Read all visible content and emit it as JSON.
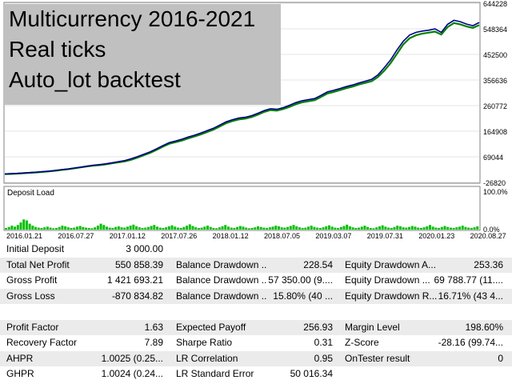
{
  "overlay": {
    "line1": "Multicurrency 2016-2021",
    "line2": "Real ticks",
    "line3": "Auto_lot backtest"
  },
  "chart_data": [
    {
      "type": "line",
      "title": "",
      "y_ticks": [
        "644228",
        "548364",
        "452500",
        "356636",
        "260772",
        "164908",
        "69044",
        "-26820"
      ],
      "ylim": [
        -26820,
        644228
      ],
      "series": [
        {
          "color": "#00008b",
          "x": [
            0,
            8,
            16,
            24,
            32,
            40,
            48,
            56,
            64,
            72,
            80,
            88,
            96,
            104,
            112,
            120,
            128,
            136,
            144,
            152,
            160,
            168,
            176,
            184,
            192,
            200,
            208,
            216,
            224,
            232,
            240,
            248,
            256,
            264,
            272,
            280,
            288,
            296,
            304,
            312,
            320,
            328,
            336,
            344,
            352,
            360,
            368,
            376,
            384,
            392,
            400,
            408,
            416,
            424,
            432,
            440,
            448,
            456,
            464,
            472,
            480,
            488,
            496,
            504,
            512,
            520,
            528,
            536,
            544,
            552,
            560,
            568,
            576,
            584,
            592,
            600
          ],
          "values": [
            5000,
            6000,
            7000,
            8500,
            10000,
            11500,
            13500,
            15500,
            18000,
            21000,
            23500,
            27000,
            30500,
            34000,
            37500,
            40000,
            43000,
            47000,
            51000,
            55000,
            62000,
            70000,
            79000,
            88000,
            99000,
            111000,
            122000,
            128000,
            135000,
            143000,
            150000,
            158000,
            167000,
            176000,
            188000,
            200000,
            208000,
            214000,
            217000,
            223000,
            232000,
            242000,
            249000,
            247000,
            253000,
            262000,
            272000,
            279000,
            283000,
            287000,
            299000,
            312000,
            318000,
            325000,
            332000,
            338000,
            346000,
            352000,
            359000,
            376000,
            403000,
            432000,
            469000,
            502000,
            525000,
            535000,
            540000,
            543000,
            548000,
            535000,
            565000,
            580000,
            575000,
            566000,
            560000,
            572000
          ]
        },
        {
          "color": "#008000",
          "x": [
            0,
            8,
            16,
            24,
            32,
            40,
            48,
            56,
            64,
            72,
            80,
            88,
            96,
            104,
            112,
            120,
            128,
            136,
            144,
            152,
            160,
            168,
            176,
            184,
            192,
            200,
            208,
            216,
            224,
            232,
            240,
            248,
            256,
            264,
            272,
            280,
            288,
            296,
            304,
            312,
            320,
            328,
            336,
            344,
            352,
            360,
            368,
            376,
            384,
            392,
            400,
            408,
            416,
            424,
            432,
            440,
            448,
            456,
            464,
            472,
            480,
            488,
            496,
            504,
            512,
            520,
            528,
            536,
            544,
            552,
            560,
            568,
            576,
            584,
            592,
            600
          ],
          "values": [
            4000,
            5000,
            6000,
            7500,
            9000,
            10500,
            12500,
            14500,
            17000,
            20000,
            22500,
            26000,
            29500,
            33000,
            36000,
            38000,
            41000,
            45000,
            48500,
            52000,
            58000,
            66000,
            75000,
            84000,
            95000,
            107000,
            118000,
            124000,
            130000,
            138000,
            145000,
            153000,
            162000,
            171000,
            183000,
            195000,
            203000,
            209000,
            212000,
            218000,
            227000,
            237000,
            244000,
            242000,
            248000,
            256000,
            266000,
            273000,
            277000,
            281000,
            293000,
            306000,
            312000,
            319000,
            326000,
            332000,
            340000,
            346000,
            352000,
            368000,
            392000,
            420000,
            455000,
            490000,
            513000,
            524000,
            530000,
            534000,
            538000,
            527000,
            555000,
            570000,
            565000,
            557000,
            552000,
            562000
          ]
        }
      ]
    },
    {
      "type": "bar",
      "title": "Deposit Load",
      "y_ticks": [
        "100.0%",
        "0.0%"
      ],
      "ylim": [
        0,
        100
      ],
      "color": "#00c000",
      "values": [
        5,
        8,
        12,
        9,
        14,
        22,
        31,
        28,
        18,
        12,
        8,
        6,
        5,
        7,
        9,
        6,
        4,
        5,
        8,
        12,
        10,
        7,
        5,
        6,
        9,
        11,
        8,
        6,
        5,
        4,
        7,
        12,
        18,
        14,
        9,
        6,
        5,
        8,
        10,
        7,
        6,
        9,
        12,
        15,
        10,
        7,
        5,
        6,
        8,
        11,
        14,
        9,
        6,
        5,
        7,
        10,
        13,
        9,
        6,
        5,
        8,
        12,
        16,
        11,
        7,
        5,
        6,
        9,
        12,
        8,
        5,
        4,
        7,
        10,
        14,
        9,
        6,
        5,
        8,
        11,
        9,
        6,
        4,
        5,
        7,
        10,
        8,
        6,
        5,
        7,
        9,
        12,
        10,
        7,
        6,
        8,
        11,
        14,
        10,
        7,
        5,
        6,
        9,
        12,
        8,
        6,
        5,
        7,
        10,
        13,
        9,
        6,
        5,
        8,
        11,
        15,
        10,
        7,
        5,
        6,
        9,
        12,
        8,
        5,
        4,
        7,
        10,
        13,
        9,
        6,
        5,
        8,
        12,
        10,
        7,
        6,
        8,
        11,
        9,
        6,
        5,
        7,
        10,
        14,
        9,
        6,
        5,
        8,
        11,
        8,
        6,
        5,
        7,
        9,
        12,
        8,
        6,
        5,
        7,
        10
      ]
    }
  ],
  "x_labels": [
    "2016.01.21",
    "2016.07.27",
    "2017.01.12",
    "2017.07.26",
    "2018.01.12",
    "2018.07.05",
    "2019.03.07",
    "2019.07.31",
    "2020.01.23",
    "2020.08.27"
  ],
  "stats": [
    {
      "l1": "Initial Deposit",
      "v1": "3 000.00",
      "l2": "",
      "v2": "",
      "l3": "",
      "v3": ""
    },
    {
      "l1": "Total Net Profit",
      "v1": "550 858.39",
      "l2": "Balance Drawdown ...",
      "v2": "228.54",
      "l3": "Equity Drawdown A...",
      "v3": "253.36"
    },
    {
      "l1": "Gross Profit",
      "v1": "1 421 693.21",
      "l2": "Balance Drawdown ...",
      "v2": "57 350.00 (9....",
      "l3": "Equity Drawdown ...",
      "v3": "69 788.77 (11...."
    },
    {
      "l1": "Gross Loss",
      "v1": "-870 834.82",
      "l2": "Balance Drawdown ...",
      "v2": "15.80% (40 ...",
      "l3": "Equity Drawdown R...",
      "v3": "16.71% (43 4..."
    },
    {
      "l1": "",
      "v1": "",
      "l2": "",
      "v2": "",
      "l3": "",
      "v3": ""
    },
    {
      "l1": "Profit Factor",
      "v1": "1.63",
      "l2": "Expected Payoff",
      "v2": "256.93",
      "l3": "Margin Level",
      "v3": "198.60%"
    },
    {
      "l1": "Recovery Factor",
      "v1": "7.89",
      "l2": "Sharpe Ratio",
      "v2": "0.31",
      "l3": "Z-Score",
      "v3": "-28.16 (99.74..."
    },
    {
      "l1": "AHPR",
      "v1": "1.0025 (0.25...",
      "l2": "LR Correlation",
      "v2": "0.95",
      "l3": "OnTester result",
      "v3": "0"
    },
    {
      "l1": "GHPR",
      "v1": "1.0024 (0.24...",
      "l2": "LR Standard Error",
      "v2": "50 016.34",
      "l3": "",
      "v3": ""
    }
  ]
}
